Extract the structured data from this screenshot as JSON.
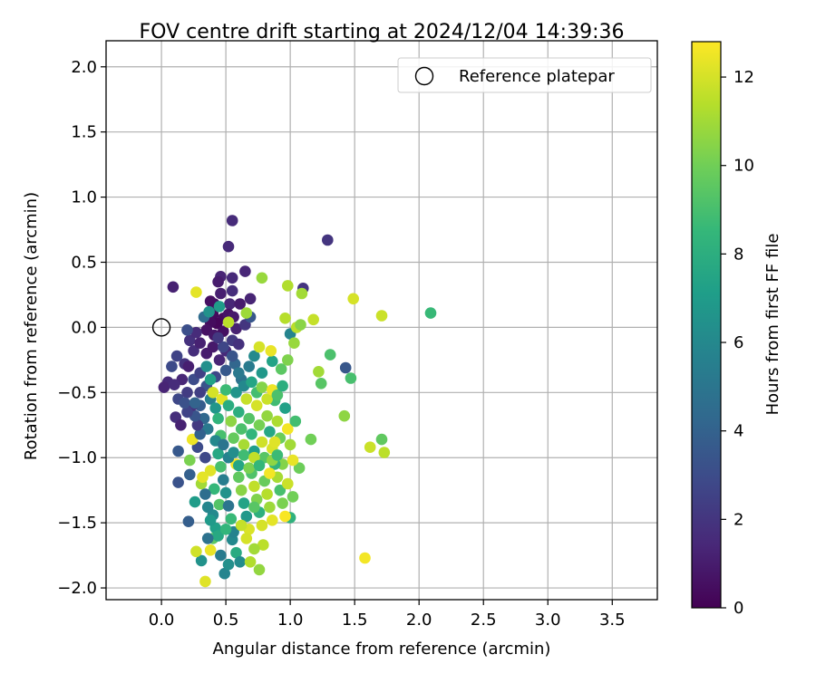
{
  "chart_data": {
    "type": "scatter",
    "title": "FOV centre drift starting at 2024/12/04 14:39:36",
    "xlabel": "Angular distance from reference (arcmin)",
    "ylabel": "Rotation from reference (arcmin)",
    "xlim": [
      -0.43,
      3.85
    ],
    "ylim": [
      -2.09,
      2.2
    ],
    "xticks": [
      0.0,
      0.5,
      1.0,
      1.5,
      2.0,
      2.5,
      3.0,
      3.5
    ],
    "xtick_labels": [
      "0.0",
      "0.5",
      "1.0",
      "1.5",
      "2.0",
      "2.5",
      "3.0",
      "3.5"
    ],
    "yticks": [
      2.0,
      1.5,
      1.0,
      0.5,
      0.0,
      -0.5,
      -1.0,
      -1.5,
      -2.0
    ],
    "ytick_labels": [
      "2.0",
      "1.5",
      "1.0",
      "0.5",
      "0.0",
      "−0.5",
      "−1.0",
      "−1.5",
      "−2.0"
    ],
    "grid": true,
    "legend": {
      "position": "top-right",
      "entries": [
        "Reference platepar"
      ]
    },
    "reference_point": {
      "x": 0.0,
      "y": 0.0,
      "label": "Reference platepar",
      "marker": "open-circle"
    },
    "colorbar": {
      "label": "Hours from first FF file",
      "range": [
        0,
        12.8
      ],
      "ticks": [
        0,
        2,
        4,
        6,
        8,
        10,
        12
      ],
      "tick_labels": [
        "0",
        "2",
        "4",
        "6",
        "8",
        "10",
        "12"
      ],
      "colormap": "viridis"
    },
    "colormap_stops": [
      "#440154",
      "#482878",
      "#3e4989",
      "#31688e",
      "#26828e",
      "#1f9e89",
      "#35b779",
      "#6ece58",
      "#b5de2b",
      "#fde725"
    ],
    "grid_color": "#b0b0b0",
    "points": [
      [
        0.55,
        0.82,
        1.6
      ],
      [
        0.52,
        0.62,
        1.5
      ],
      [
        1.29,
        0.67,
        2.0
      ],
      [
        0.65,
        0.43,
        1.4
      ],
      [
        0.46,
        0.39,
        1.3
      ],
      [
        0.55,
        0.38,
        1.5
      ],
      [
        0.44,
        0.35,
        1.0
      ],
      [
        0.09,
        0.31,
        1.2
      ],
      [
        0.55,
        0.28,
        1.7
      ],
      [
        0.46,
        0.26,
        1.1
      ],
      [
        0.69,
        0.22,
        1.3
      ],
      [
        0.53,
        0.18,
        1.4
      ],
      [
        0.41,
        0.18,
        0.6
      ],
      [
        0.38,
        0.2,
        0.5
      ],
      [
        0.61,
        0.18,
        1.0
      ],
      [
        0.4,
        0.1,
        0.3
      ],
      [
        0.48,
        0.07,
        0.4
      ],
      [
        0.52,
        0.1,
        0.7
      ],
      [
        0.43,
        0.03,
        0.2
      ],
      [
        0.56,
        0.08,
        0.9
      ],
      [
        0.38,
        0.04,
        0.4
      ],
      [
        0.35,
        -0.02,
        0.6
      ],
      [
        0.41,
        -0.06,
        0.8
      ],
      [
        0.48,
        -0.03,
        0.5
      ],
      [
        0.58,
        -0.01,
        1.2
      ],
      [
        0.65,
        0.02,
        2.0
      ],
      [
        0.69,
        0.08,
        3.5
      ],
      [
        0.33,
        0.08,
        4.5
      ],
      [
        0.37,
        0.12,
        6.5
      ],
      [
        0.45,
        0.16,
        7.0
      ],
      [
        0.52,
        0.04,
        11.5
      ],
      [
        0.27,
        0.27,
        12.3
      ],
      [
        0.22,
        -0.1,
        1.8
      ],
      [
        0.27,
        -0.04,
        1.6
      ],
      [
        0.2,
        -0.02,
        3.1
      ],
      [
        0.25,
        -0.18,
        1.7
      ],
      [
        0.3,
        -0.12,
        1.2
      ],
      [
        0.35,
        -0.2,
        1.0
      ],
      [
        0.4,
        -0.15,
        0.9
      ],
      [
        0.45,
        -0.25,
        1.3
      ],
      [
        0.5,
        -0.18,
        1.5
      ],
      [
        0.55,
        -0.1,
        2.2
      ],
      [
        0.6,
        -0.13,
        1.8
      ],
      [
        0.18,
        -0.28,
        1.9
      ],
      [
        0.12,
        -0.22,
        2.6
      ],
      [
        0.08,
        -0.3,
        2.9
      ],
      [
        0.16,
        -0.4,
        1.4
      ],
      [
        0.21,
        -0.3,
        1.1
      ],
      [
        0.05,
        -0.42,
        1.5
      ],
      [
        0.02,
        -0.46,
        1.3
      ],
      [
        0.1,
        -0.44,
        1.6
      ],
      [
        0.13,
        -0.55,
        2.8
      ],
      [
        0.11,
        -0.69,
        1.7
      ],
      [
        0.15,
        -0.75,
        1.2
      ],
      [
        0.2,
        -0.5,
        2.3
      ],
      [
        0.25,
        -0.4,
        3.0
      ],
      [
        0.3,
        -0.35,
        2.5
      ],
      [
        0.35,
        -0.45,
        3.3
      ],
      [
        0.42,
        -0.38,
        2.8
      ],
      [
        0.5,
        -0.33,
        3.6
      ],
      [
        0.57,
        -0.28,
        4.2
      ],
      [
        0.62,
        -0.4,
        4.8
      ],
      [
        0.68,
        -0.3,
        5.3
      ],
      [
        0.72,
        -0.22,
        6.1
      ],
      [
        0.78,
        -0.35,
        6.8
      ],
      [
        0.86,
        -0.26,
        7.4
      ],
      [
        0.93,
        -0.32,
        9.5
      ],
      [
        0.98,
        -0.25,
        10.3
      ],
      [
        1.0,
        -0.05,
        5.8
      ],
      [
        1.03,
        -0.12,
        10.8
      ],
      [
        1.05,
        0.0,
        11.5
      ],
      [
        1.08,
        0.02,
        10.5
      ],
      [
        1.1,
        0.3,
        2.0
      ],
      [
        1.09,
        0.26,
        11.0
      ],
      [
        0.96,
        0.07,
        11.4
      ],
      [
        1.18,
        0.06,
        11.7
      ],
      [
        0.98,
        0.32,
        11.3
      ],
      [
        0.78,
        0.38,
        10.8
      ],
      [
        0.66,
        0.11,
        10.9
      ],
      [
        0.76,
        -0.15,
        12.0
      ],
      [
        0.85,
        -0.18,
        12.4
      ],
      [
        1.49,
        0.22,
        12.0
      ],
      [
        1.71,
        0.09,
        11.8
      ],
      [
        2.09,
        0.11,
        8.6
      ],
      [
        1.43,
        -0.31,
        3.5
      ],
      [
        1.47,
        -0.39,
        9.0
      ],
      [
        1.31,
        -0.21,
        9.1
      ],
      [
        1.22,
        -0.34,
        11.0
      ],
      [
        1.24,
        -0.43,
        9.4
      ],
      [
        1.42,
        -0.68,
        10.6
      ],
      [
        1.62,
        -0.92,
        11.8
      ],
      [
        1.71,
        -0.86,
        9.6
      ],
      [
        1.73,
        -0.96,
        11.5
      ],
      [
        1.16,
        -0.86,
        10.0
      ],
      [
        1.07,
        -1.08,
        9.9
      ],
      [
        1.0,
        -1.46,
        8.2
      ],
      [
        1.58,
        -1.77,
        12.6
      ],
      [
        0.55,
        -1.63,
        6.0
      ],
      [
        0.58,
        -1.73,
        7.8
      ],
      [
        0.61,
        -1.8,
        6.2
      ],
      [
        0.49,
        -1.89,
        5.8
      ],
      [
        0.34,
        -1.95,
        12.2
      ],
      [
        0.31,
        -1.79,
        6.5
      ],
      [
        0.27,
        -1.72,
        11.9
      ],
      [
        0.38,
        -1.71,
        12.4
      ],
      [
        0.4,
        -1.62,
        9.5
      ],
      [
        0.76,
        -1.86,
        10.7
      ],
      [
        0.69,
        -1.8,
        11.3
      ],
      [
        0.79,
        -1.67,
        11.5
      ],
      [
        0.21,
        -1.49,
        3.8
      ],
      [
        0.13,
        -1.19,
        3.3
      ],
      [
        0.13,
        -0.95,
        3.6
      ],
      [
        0.22,
        -1.13,
        3.9
      ],
      [
        0.28,
        -0.92,
        3.0
      ],
      [
        0.34,
        -1.0,
        2.8
      ],
      [
        0.38,
        -1.1,
        12.2
      ],
      [
        0.41,
        -1.24,
        8.5
      ],
      [
        0.45,
        -1.36,
        9.3
      ],
      [
        0.31,
        -1.2,
        11.0
      ],
      [
        0.26,
        -1.34,
        7.0
      ],
      [
        0.24,
        -0.86,
        12.5
      ],
      [
        0.22,
        -1.02,
        10.2
      ],
      [
        0.3,
        -0.6,
        3.7
      ],
      [
        0.33,
        -0.7,
        4.3
      ],
      [
        0.36,
        -0.78,
        5.2
      ],
      [
        0.38,
        -0.55,
        5.5
      ],
      [
        0.42,
        -0.62,
        6.7
      ],
      [
        0.44,
        -0.7,
        8.3
      ],
      [
        0.46,
        -0.83,
        9.0
      ],
      [
        0.47,
        -0.55,
        12.3
      ],
      [
        0.5,
        -0.48,
        8.7
      ],
      [
        0.52,
        -0.6,
        7.9
      ],
      [
        0.54,
        -0.72,
        10.6
      ],
      [
        0.56,
        -0.85,
        9.7
      ],
      [
        0.58,
        -0.5,
        6.6
      ],
      [
        0.6,
        -0.65,
        8.0
      ],
      [
        0.62,
        -0.78,
        9.1
      ],
      [
        0.64,
        -0.9,
        11.1
      ],
      [
        0.66,
        -0.55,
        11.7
      ],
      [
        0.68,
        -0.7,
        9.3
      ],
      [
        0.7,
        -0.82,
        8.4
      ],
      [
        0.72,
        -0.95,
        7.1
      ],
      [
        0.74,
        -0.6,
        12.0
      ],
      [
        0.76,
        -0.75,
        10.1
      ],
      [
        0.78,
        -0.88,
        11.9
      ],
      [
        0.8,
        -1.0,
        9.4
      ],
      [
        0.82,
        -0.68,
        10.7
      ],
      [
        0.84,
        -0.8,
        7.6
      ],
      [
        0.86,
        -0.93,
        12.1
      ],
      [
        0.88,
        -0.56,
        8.8
      ],
      [
        0.9,
        -0.72,
        11.2
      ],
      [
        0.92,
        -0.85,
        9.9
      ],
      [
        0.94,
        -1.05,
        10.4
      ],
      [
        0.96,
        -0.62,
        7.3
      ],
      [
        0.98,
        -0.78,
        12.6
      ],
      [
        1.0,
        -0.9,
        11.0
      ],
      [
        1.02,
        -1.02,
        12.4
      ],
      [
        1.04,
        -0.72,
        8.9
      ],
      [
        0.35,
        -0.3,
        6.4
      ],
      [
        0.38,
        -0.4,
        7.3
      ],
      [
        0.4,
        -0.5,
        12.0
      ],
      [
        0.42,
        -0.87,
        6.0
      ],
      [
        0.44,
        -0.97,
        7.6
      ],
      [
        0.46,
        -1.07,
        9.0
      ],
      [
        0.48,
        -1.17,
        5.4
      ],
      [
        0.5,
        -1.27,
        6.5
      ],
      [
        0.52,
        -1.37,
        4.9
      ],
      [
        0.54,
        -1.47,
        8.6
      ],
      [
        0.56,
        -1.57,
        5.7
      ],
      [
        0.58,
        -1.05,
        12.5
      ],
      [
        0.6,
        -1.15,
        9.6
      ],
      [
        0.62,
        -1.25,
        10.5
      ],
      [
        0.64,
        -1.35,
        7.4
      ],
      [
        0.66,
        -1.45,
        6.8
      ],
      [
        0.68,
        -1.55,
        12.1
      ],
      [
        0.7,
        -1.12,
        9.2
      ],
      [
        0.72,
        -1.22,
        11.6
      ],
      [
        0.74,
        -1.32,
        10.3
      ],
      [
        0.76,
        -1.42,
        8.1
      ],
      [
        0.78,
        -1.52,
        12.0
      ],
      [
        0.8,
        -1.18,
        9.8
      ],
      [
        0.82,
        -1.28,
        11.4
      ],
      [
        0.84,
        -1.38,
        10.9
      ],
      [
        0.86,
        -1.48,
        12.3
      ],
      [
        0.88,
        -1.05,
        8.3
      ],
      [
        0.9,
        -1.15,
        11.1
      ],
      [
        0.92,
        -1.25,
        9.0
      ],
      [
        0.94,
        -1.35,
        10.2
      ],
      [
        0.96,
        -1.45,
        12.7
      ],
      [
        0.98,
        -1.2,
        11.8
      ],
      [
        1.02,
        -1.3,
        10.0
      ],
      [
        0.4,
        -1.44,
        6.1
      ],
      [
        0.42,
        -1.54,
        7.2
      ],
      [
        0.36,
        -1.38,
        5.9
      ],
      [
        0.34,
        -1.28,
        4.6
      ],
      [
        0.32,
        -1.15,
        12.3
      ],
      [
        0.38,
        -1.48,
        6.9
      ],
      [
        0.44,
        -1.6,
        7.7
      ],
      [
        0.5,
        -1.55,
        8.4
      ],
      [
        0.3,
        -0.82,
        4.0
      ],
      [
        0.28,
        -0.75,
        2.2
      ],
      [
        0.26,
        -0.68,
        3.4
      ],
      [
        0.24,
        -0.6,
        1.9
      ],
      [
        0.2,
        -0.65,
        2.6
      ],
      [
        0.18,
        -0.58,
        3.2
      ],
      [
        0.48,
        -0.9,
        5.0
      ],
      [
        0.52,
        -1.0,
        5.7
      ],
      [
        0.56,
        -0.96,
        6.3
      ],
      [
        0.6,
        -1.06,
        7.5
      ],
      [
        0.64,
        -0.98,
        8.8
      ],
      [
        0.68,
        -1.08,
        10.2
      ],
      [
        0.72,
        -1.0,
        11.6
      ],
      [
        0.6,
        -0.35,
        5.2
      ],
      [
        0.64,
        -0.45,
        6.0
      ],
      [
        0.7,
        -0.42,
        7.5
      ],
      [
        0.74,
        -0.5,
        8.9
      ],
      [
        0.78,
        -0.46,
        10.4
      ],
      [
        0.82,
        -0.55,
        11.8
      ],
      [
        0.86,
        -0.48,
        12.5
      ],
      [
        0.9,
        -0.52,
        9.1
      ],
      [
        0.94,
        -0.45,
        8.0
      ],
      [
        0.55,
        -0.22,
        3.4
      ],
      [
        0.48,
        -0.15,
        2.7
      ],
      [
        0.44,
        -0.08,
        2.1
      ],
      [
        0.3,
        -0.5,
        2.4
      ],
      [
        0.26,
        -0.58,
        4.1
      ],
      [
        0.66,
        -1.62,
        12.0
      ],
      [
        0.72,
        -1.7,
        11.0
      ],
      [
        0.46,
        -1.75,
        5.3
      ],
      [
        0.52,
        -1.82,
        6.4
      ],
      [
        0.36,
        -1.62,
        4.8
      ],
      [
        0.62,
        -1.52,
        11.7
      ],
      [
        0.84,
        -1.12,
        12.6
      ],
      [
        0.86,
        -1.02,
        10.6
      ],
      [
        0.9,
        -0.98,
        8.7
      ],
      [
        0.88,
        -0.88,
        12.2
      ],
      [
        0.76,
        -1.06,
        8.5
      ],
      [
        0.72,
        -1.38,
        9.4
      ]
    ]
  }
}
